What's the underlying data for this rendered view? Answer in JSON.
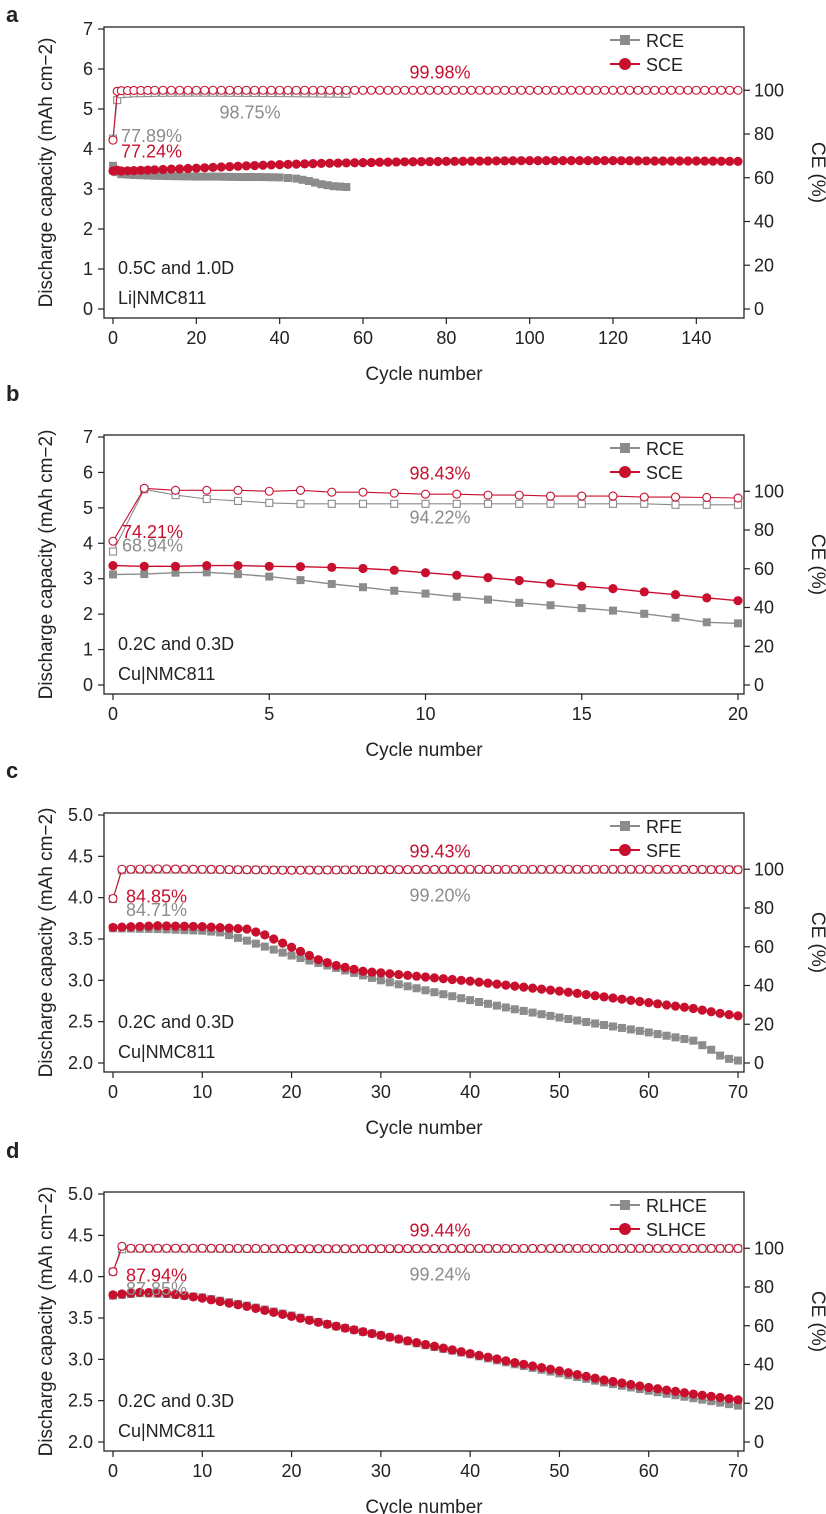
{
  "colors": {
    "red": "#c8102e",
    "gray": "#8c8c8c",
    "axis": "#222222"
  },
  "chart_data": [
    {
      "panel": "a",
      "type": "line",
      "xlabel": "Cycle number",
      "ylabel": "Discharge capacity (mAh cm−2)",
      "y2label": "CE (%)",
      "xlim": [
        0,
        150
      ],
      "ylim": [
        0,
        7
      ],
      "y2lim": [
        0,
        128
      ],
      "xticks": [
        "0",
        "20",
        "40",
        "60",
        "80",
        "100",
        "120",
        "140"
      ],
      "yticks": [
        "0",
        "1",
        "2",
        "3",
        "4",
        "5",
        "6",
        "7"
      ],
      "y2ticks": [
        "0",
        "20",
        "40",
        "60",
        "80",
        "100"
      ],
      "notes": [
        "0.5C and 1.0D",
        "Li|NMC811"
      ],
      "legend": [
        "RCE",
        "SCE"
      ],
      "annotations": {
        "red_ce_avg": "99.98%",
        "gray_ce_avg": "98.75%",
        "red_ice": "77.24%",
        "gray_ice": "77.89%"
      },
      "series": [
        {
          "name": "RCE capacity",
          "color": "gray",
          "marker": "square",
          "x": [
            0,
            1,
            2,
            5,
            10,
            15,
            20,
            25,
            30,
            35,
            40,
            44,
            47,
            50,
            53,
            56
          ],
          "y": [
            3.58,
            3.42,
            3.37,
            3.35,
            3.33,
            3.32,
            3.31,
            3.31,
            3.3,
            3.3,
            3.29,
            3.26,
            3.2,
            3.12,
            3.07,
            3.05
          ]
        },
        {
          "name": "SCE capacity",
          "color": "red",
          "marker": "circle",
          "x": [
            0,
            1,
            2,
            5,
            10,
            20,
            30,
            40,
            50,
            60,
            70,
            80,
            90,
            100,
            110,
            120,
            130,
            140,
            150
          ],
          "y": [
            3.45,
            3.47,
            3.45,
            3.46,
            3.48,
            3.52,
            3.57,
            3.61,
            3.64,
            3.66,
            3.68,
            3.69,
            3.7,
            3.71,
            3.71,
            3.71,
            3.7,
            3.7,
            3.69
          ]
        },
        {
          "name": "RCE CE",
          "color": "gray",
          "marker": "open-square",
          "x": [
            0,
            1,
            2,
            5,
            10,
            20,
            30,
            40,
            50,
            56
          ],
          "y": [
            77.9,
            95.5,
            98.2,
            98.6,
            98.8,
            98.9,
            98.8,
            98.7,
            98.5,
            98.4
          ]
        },
        {
          "name": "SCE CE",
          "color": "red",
          "marker": "open-circle",
          "x": [
            0,
            1,
            2,
            5,
            10,
            20,
            30,
            40,
            50,
            60,
            70,
            80,
            90,
            100,
            110,
            120,
            130,
            140,
            150
          ],
          "y": [
            77.2,
            99.5,
            99.8,
            99.9,
            100,
            100,
            100,
            100,
            100,
            100,
            100,
            100,
            100,
            100,
            100,
            100,
            100,
            100,
            100
          ]
        }
      ]
    },
    {
      "panel": "b",
      "type": "line",
      "xlabel": "Cycle number",
      "ylabel": "Discharge capacity (mAh cm−2)",
      "y2label": "CE (%)",
      "xlim": [
        0,
        20
      ],
      "ylim": [
        0,
        7
      ],
      "y2lim": [
        0,
        128
      ],
      "xticks": [
        "0",
        "5",
        "10",
        "15",
        "20"
      ],
      "yticks": [
        "0",
        "1",
        "2",
        "3",
        "4",
        "5",
        "6",
        "7"
      ],
      "y2ticks": [
        "0",
        "20",
        "40",
        "60",
        "80",
        "100"
      ],
      "notes": [
        "0.2C and 0.3D",
        "Cu|NMC811"
      ],
      "legend": [
        "RCE",
        "SCE"
      ],
      "annotations": {
        "red_ce_avg": "98.43%",
        "gray_ce_avg": "94.22%",
        "red_ice": "74.21%",
        "gray_ice": "68.94%"
      },
      "series": [
        {
          "name": "RCE capacity",
          "color": "gray",
          "marker": "square",
          "x": [
            0,
            1,
            2,
            3,
            4,
            5,
            6,
            7,
            8,
            9,
            10,
            11,
            12,
            13,
            14,
            15,
            16,
            17,
            18,
            19,
            20
          ],
          "y": [
            3.12,
            3.13,
            3.17,
            3.18,
            3.13,
            3.06,
            2.96,
            2.85,
            2.76,
            2.66,
            2.58,
            2.49,
            2.41,
            2.32,
            2.25,
            2.17,
            2.1,
            2.01,
            1.9,
            1.77,
            1.74
          ]
        },
        {
          "name": "SCE capacity",
          "color": "red",
          "marker": "circle",
          "x": [
            0,
            1,
            2,
            3,
            4,
            5,
            6,
            7,
            8,
            9,
            10,
            11,
            12,
            13,
            14,
            15,
            16,
            17,
            18,
            19,
            20
          ],
          "y": [
            3.37,
            3.35,
            3.35,
            3.37,
            3.37,
            3.35,
            3.34,
            3.32,
            3.29,
            3.24,
            3.17,
            3.1,
            3.03,
            2.95,
            2.87,
            2.79,
            2.72,
            2.63,
            2.55,
            2.46,
            2.38
          ]
        },
        {
          "name": "RCE CE",
          "color": "gray",
          "marker": "open-square",
          "x": [
            0,
            1,
            2,
            3,
            4,
            5,
            6,
            7,
            8,
            9,
            10,
            11,
            12,
            13,
            14,
            15,
            16,
            17,
            18,
            19,
            20
          ],
          "y": [
            68.9,
            101,
            98,
            96,
            95,
            94,
            93.5,
            93.5,
            93.5,
            93.5,
            93.5,
            93.5,
            93.5,
            93.5,
            93.5,
            93.5,
            93.5,
            93.5,
            93,
            93,
            93
          ]
        },
        {
          "name": "SCE CE",
          "color": "red",
          "marker": "open-circle",
          "x": [
            0,
            1,
            2,
            3,
            4,
            5,
            6,
            7,
            8,
            9,
            10,
            11,
            12,
            13,
            14,
            15,
            16,
            17,
            18,
            19,
            20
          ],
          "y": [
            74.2,
            101.5,
            100.5,
            100.5,
            100.5,
            100,
            100.5,
            99.5,
            99.5,
            99,
            98.5,
            98.5,
            98,
            98,
            97.5,
            97.5,
            97.5,
            97,
            97,
            96.8,
            96.5
          ]
        }
      ]
    },
    {
      "panel": "c",
      "type": "line",
      "xlabel": "Cycle number",
      "ylabel": "Discharge capacity (mAh cm−2)",
      "y2label": "CE (%)",
      "xlim": [
        0,
        70
      ],
      "ylim": [
        2.0,
        5.0
      ],
      "y2lim": [
        0,
        128
      ],
      "xticks": [
        "0",
        "10",
        "20",
        "30",
        "40",
        "50",
        "60",
        "70"
      ],
      "yticks": [
        "2.0",
        "2.5",
        "3.0",
        "3.5",
        "4.0",
        "4.5",
        "5.0"
      ],
      "y2ticks": [
        "0",
        "20",
        "40",
        "60",
        "80",
        "100"
      ],
      "notes": [
        "0.2C and 0.3D",
        "Cu|NMC811"
      ],
      "legend": [
        "RFE",
        "SFE"
      ],
      "annotations": {
        "red_ce_avg": "99.43%",
        "gray_ce_avg": "99.20%",
        "red_ice": "84.85%",
        "gray_ice": "84.71%"
      },
      "series": [
        {
          "name": "RFE capacity",
          "color": "gray",
          "marker": "square",
          "x": [
            0,
            5,
            10,
            12,
            15,
            20,
            25,
            30,
            35,
            40,
            45,
            50,
            55,
            60,
            63,
            65,
            67,
            68,
            69,
            70
          ],
          "y": [
            3.63,
            3.62,
            3.6,
            3.58,
            3.48,
            3.3,
            3.15,
            3.0,
            2.88,
            2.76,
            2.65,
            2.55,
            2.46,
            2.37,
            2.31,
            2.27,
            2.16,
            2.09,
            2.05,
            2.03
          ]
        },
        {
          "name": "SFE capacity",
          "color": "red",
          "marker": "circle",
          "x": [
            0,
            5,
            10,
            15,
            17,
            20,
            23,
            25,
            28,
            30,
            35,
            40,
            45,
            50,
            55,
            60,
            65,
            68,
            70
          ],
          "y": [
            3.64,
            3.66,
            3.65,
            3.62,
            3.55,
            3.4,
            3.25,
            3.18,
            3.11,
            3.09,
            3.04,
            2.99,
            2.93,
            2.87,
            2.8,
            2.73,
            2.66,
            2.6,
            2.57
          ]
        },
        {
          "name": "RFE CE",
          "color": "gray",
          "marker": "open-square",
          "x": [
            0,
            1,
            2,
            5,
            10,
            20,
            30,
            40,
            50,
            60,
            70
          ],
          "y": [
            84.7,
            99.5,
            99.8,
            99.8,
            99.8,
            99.6,
            99.7,
            99.7,
            99.8,
            99.8,
            99.8
          ]
        },
        {
          "name": "SFE CE",
          "color": "red",
          "marker": "open-circle",
          "x": [
            0,
            1,
            2,
            5,
            10,
            20,
            30,
            40,
            50,
            60,
            70
          ],
          "y": [
            84.9,
            100,
            100,
            100.2,
            100,
            99.5,
            99.8,
            100,
            100,
            100,
            99.8
          ]
        }
      ]
    },
    {
      "panel": "d",
      "type": "line",
      "xlabel": "Cycle number",
      "ylabel": "Discharge capacity (mAh cm−2)",
      "y2label": "CE (%)",
      "xlim": [
        0,
        70
      ],
      "ylim": [
        2.0,
        5.0
      ],
      "y2lim": [
        0,
        128
      ],
      "xticks": [
        "0",
        "10",
        "20",
        "30",
        "40",
        "50",
        "60",
        "70"
      ],
      "yticks": [
        "2.0",
        "2.5",
        "3.0",
        "3.5",
        "4.0",
        "4.5",
        "5.0"
      ],
      "y2ticks": [
        "0",
        "20",
        "40",
        "60",
        "80",
        "100"
      ],
      "notes": [
        "0.2C and 0.3D",
        "Cu|NMC811"
      ],
      "legend": [
        "RLHCE",
        "SLHCE"
      ],
      "annotations": {
        "red_ce_avg": "99.44%",
        "gray_ce_avg": "99.24%",
        "red_ice": "87.94%",
        "gray_ice": "87.85%"
      },
      "series": [
        {
          "name": "RLHCE capacity",
          "color": "gray",
          "marker": "square",
          "x": [
            0,
            3,
            6,
            10,
            15,
            20,
            25,
            30,
            35,
            40,
            45,
            50,
            55,
            60,
            65,
            70
          ],
          "y": [
            3.77,
            3.8,
            3.79,
            3.75,
            3.65,
            3.53,
            3.4,
            3.29,
            3.17,
            3.06,
            2.94,
            2.83,
            2.72,
            2.62,
            2.53,
            2.44
          ]
        },
        {
          "name": "SLHCE capacity",
          "color": "red",
          "marker": "circle",
          "x": [
            0,
            3,
            6,
            10,
            15,
            20,
            25,
            30,
            35,
            40,
            45,
            50,
            55,
            60,
            65,
            70
          ],
          "y": [
            3.78,
            3.81,
            3.8,
            3.74,
            3.64,
            3.52,
            3.4,
            3.29,
            3.18,
            3.07,
            2.96,
            2.86,
            2.75,
            2.66,
            2.58,
            2.51
          ]
        },
        {
          "name": "RLHCE CE",
          "color": "gray",
          "marker": "open-square",
          "x": [
            0,
            1,
            2,
            5,
            10,
            20,
            30,
            40,
            50,
            60,
            70
          ],
          "y": [
            87.9,
            99.5,
            99.8,
            99.8,
            99.8,
            99.6,
            99.7,
            99.7,
            99.8,
            99.8,
            99.8
          ]
        },
        {
          "name": "SLHCE CE",
          "color": "red",
          "marker": "open-circle",
          "x": [
            0,
            1,
            2,
            5,
            10,
            20,
            30,
            40,
            50,
            60,
            70
          ],
          "y": [
            87.9,
            101,
            100,
            100,
            100,
            99.8,
            99.8,
            99.9,
            99.9,
            99.9,
            99.9
          ]
        }
      ]
    }
  ]
}
